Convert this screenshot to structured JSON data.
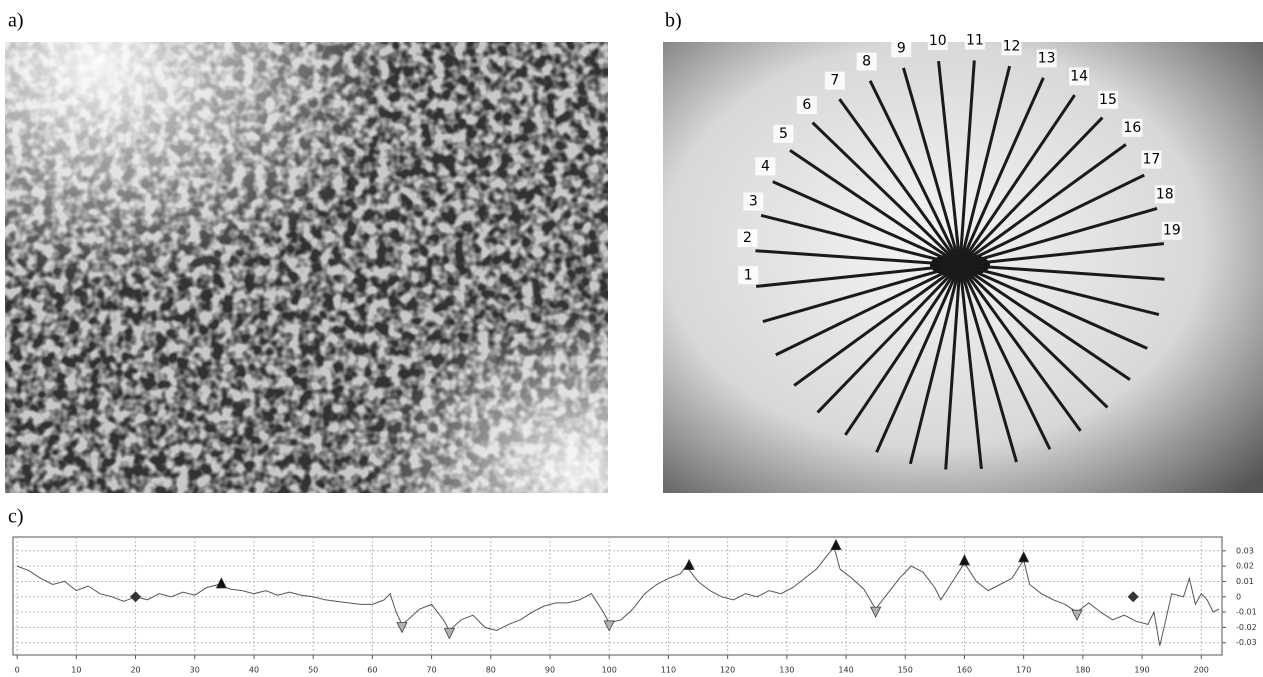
{
  "panel_labels": [
    "a)",
    "b)",
    "c)"
  ],
  "ray_labels": [
    1,
    2,
    3,
    4,
    5,
    6,
    7,
    8,
    9,
    10,
    11,
    12,
    13,
    14,
    15,
    16,
    17,
    18,
    19
  ],
  "chart_data": {
    "type": "line",
    "color": "#555555",
    "grid": true,
    "x": [
      0,
      2,
      4,
      6,
      8,
      10,
      12,
      14,
      16,
      18,
      20,
      22,
      24,
      26,
      28,
      30,
      32,
      34,
      36,
      38,
      40,
      42,
      44,
      46,
      48,
      50,
      52,
      54,
      56,
      58,
      60,
      62,
      63,
      64,
      65,
      66,
      68,
      70,
      72,
      73,
      75,
      77,
      79,
      81,
      83,
      85,
      87,
      89,
      91,
      93,
      95,
      97,
      99,
      100,
      102,
      104,
      106,
      108,
      110,
      112,
      113,
      115,
      117,
      119,
      121,
      123,
      125,
      127,
      129,
      131,
      133,
      135,
      137,
      138,
      139,
      141,
      143,
      145,
      147,
      149,
      151,
      153,
      155,
      156,
      158,
      160,
      162,
      164,
      166,
      168,
      170,
      171,
      173,
      175,
      177,
      179,
      181,
      183,
      185,
      187,
      189,
      191,
      192,
      193,
      194,
      195,
      197,
      198,
      199,
      200,
      201,
      202,
      203
    ],
    "values": [
      0.02,
      0.017,
      0.012,
      0.008,
      0.01,
      0.004,
      0.007,
      0.002,
      0,
      -0.003,
      0,
      -0.002,
      0.002,
      0,
      0.003,
      0.001,
      0.006,
      0.008,
      0.005,
      0.004,
      0.002,
      0.004,
      0.001,
      0.003,
      0.001,
      0,
      -0.002,
      -0.003,
      -0.004,
      -0.005,
      -0.005,
      -0.002,
      0.002,
      -0.01,
      -0.018,
      -0.015,
      -0.008,
      -0.005,
      -0.015,
      -0.022,
      -0.015,
      -0.012,
      -0.02,
      -0.022,
      -0.018,
      -0.015,
      -0.01,
      -0.006,
      -0.004,
      -0.004,
      -0.002,
      0.002,
      -0.01,
      -0.017,
      -0.015,
      -0.008,
      0.002,
      0.008,
      0.012,
      0.015,
      0.02,
      0.01,
      0.004,
      0,
      -0.002,
      0.002,
      0,
      0.004,
      0.002,
      0.006,
      0.012,
      0.018,
      0.028,
      0.032,
      0.018,
      0.012,
      0.005,
      -0.008,
      0.002,
      0.012,
      0.02,
      0.016,
      0.006,
      -0.002,
      0.01,
      0.022,
      0.01,
      0.004,
      0.008,
      0.012,
      0.024,
      0.008,
      0.002,
      -0.002,
      -0.005,
      -0.01,
      -0.004,
      -0.01,
      -0.015,
      -0.012,
      -0.016,
      -0.018,
      -0.01,
      -0.032,
      -0.015,
      0.002,
      0,
      0.012,
      -0.005,
      0.002,
      -0.002,
      -0.01,
      -0.008
    ],
    "peaks": {
      "color": "#111111",
      "x": [
        34.5,
        113.5,
        138.3,
        160,
        170
      ],
      "values": [
        0.009,
        0.021,
        0.034,
        0.024,
        0.026
      ]
    },
    "troughs": {
      "color": "#b0b0b0",
      "x": [
        65,
        73,
        100,
        145,
        179
      ],
      "values": [
        -0.02,
        -0.024,
        -0.019,
        -0.01,
        -0.012
      ]
    },
    "points": {
      "color": "#333333",
      "x": [
        20,
        188.5
      ],
      "values": [
        0,
        0
      ]
    },
    "xlim": [
      -0.7,
      203.5
    ],
    "ylim": [
      -0.038,
      0.039
    ],
    "xticks": [
      0,
      10,
      20,
      30,
      40,
      50,
      60,
      70,
      80,
      90,
      100,
      110,
      120,
      130,
      140,
      150,
      160,
      170,
      180,
      190,
      200
    ],
    "yticks": [
      0.03,
      0.02,
      0.01,
      0,
      -0.01,
      -0.02,
      -0.03
    ]
  }
}
